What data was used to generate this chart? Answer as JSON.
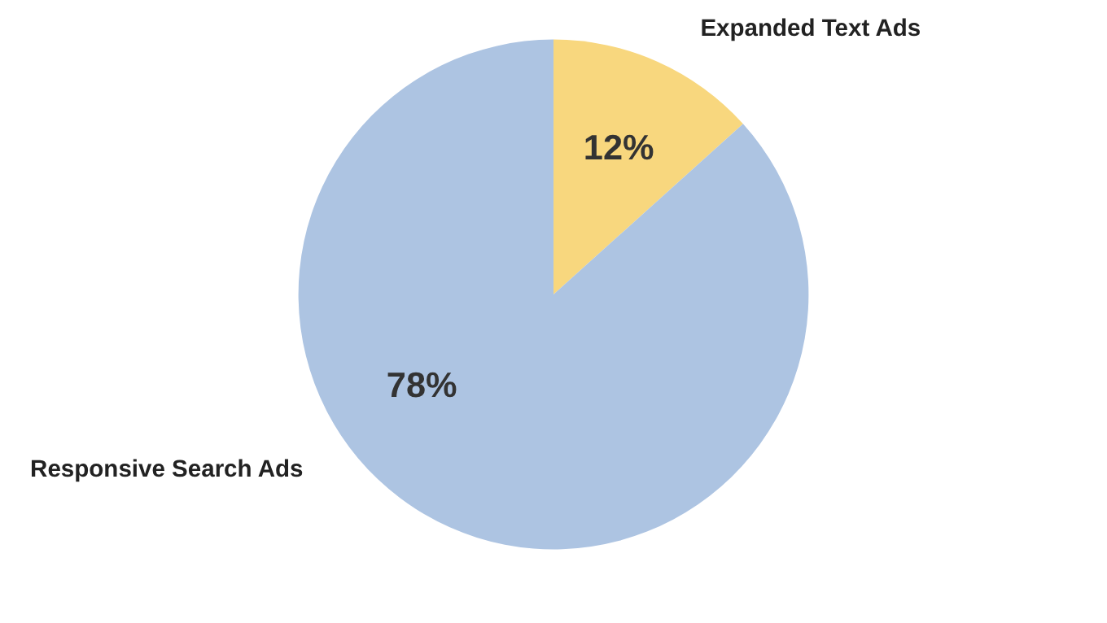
{
  "chart_data": {
    "type": "pie",
    "categories": [
      "Expanded Text Ads",
      "Responsive Search Ads"
    ],
    "values": [
      12,
      78
    ],
    "colors": [
      "#f8d77e",
      "#adc4e2"
    ],
    "value_labels": [
      "12%",
      "78%"
    ]
  }
}
